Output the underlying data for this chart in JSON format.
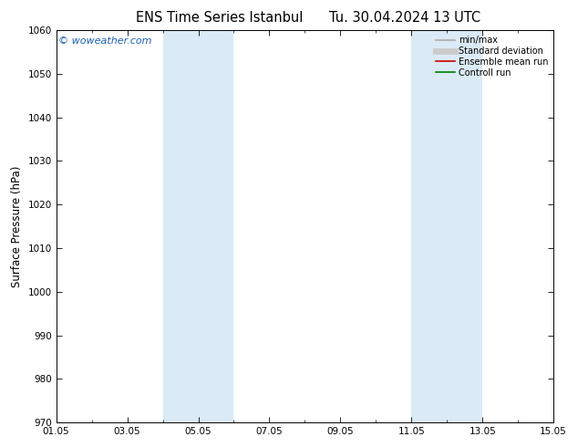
{
  "title_left": "ENS Time Series Istanbul",
  "title_right": "Tu. 30.04.2024 13 UTC",
  "ylabel": "Surface Pressure (hPa)",
  "ylim": [
    970,
    1060
  ],
  "yticks": [
    970,
    980,
    990,
    1000,
    1010,
    1020,
    1030,
    1040,
    1050,
    1060
  ],
  "xtick_labels": [
    "01.05",
    "03.05",
    "05.05",
    "07.05",
    "09.05",
    "11.05",
    "13.05",
    "15.05"
  ],
  "xtick_positions": [
    0,
    2,
    4,
    6,
    8,
    10,
    12,
    14
  ],
  "xlim": [
    0,
    14
  ],
  "background_color": "#ffffff",
  "plot_bg_color": "#ffffff",
  "shade_bands": [
    {
      "x_start": 3,
      "x_end": 5,
      "color": "#daeaf7"
    },
    {
      "x_start": 10,
      "x_end": 12,
      "color": "#daeaf7"
    }
  ],
  "watermark_text": "© woweather.com",
  "watermark_color": "#1a5fb4",
  "legend_items": [
    {
      "label": "min/max",
      "color": "#aaaaaa",
      "lw": 1.2
    },
    {
      "label": "Standard deviation",
      "color": "#cccccc",
      "lw": 5
    },
    {
      "label": "Ensemble mean run",
      "color": "#cc0000",
      "lw": 1.2
    },
    {
      "label": "Controll run",
      "color": "#008000",
      "lw": 1.2
    }
  ],
  "tick_font_size": 7.5,
  "label_font_size": 8.5,
  "title_font_size": 10.5,
  "ylabel_font_size": 8.5
}
